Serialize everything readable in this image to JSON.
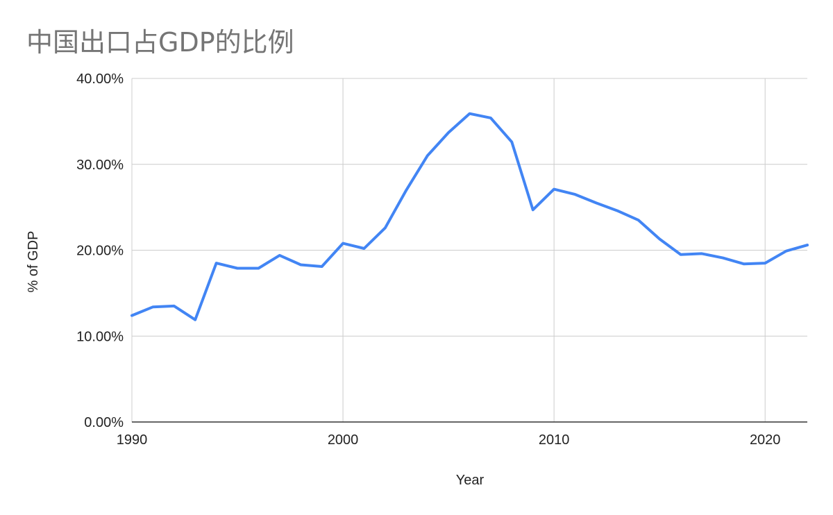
{
  "chart_data": {
    "type": "line",
    "title": "中国出口占GDP的比例",
    "xlabel": "Year",
    "ylabel": "% of GDP",
    "xlim": [
      1990,
      2022
    ],
    "ylim": [
      0,
      40
    ],
    "x_ticks": [
      {
        "value": 1990,
        "label": "1990"
      },
      {
        "value": 2000,
        "label": "2000"
      },
      {
        "value": 2010,
        "label": "2010"
      },
      {
        "value": 2020,
        "label": "2020"
      }
    ],
    "y_ticks": [
      {
        "value": 0,
        "label": "0.00%"
      },
      {
        "value": 10,
        "label": "10.00%"
      },
      {
        "value": 20,
        "label": "20.00%"
      },
      {
        "value": 30,
        "label": "30.00%"
      },
      {
        "value": 40,
        "label": "40.00%"
      }
    ],
    "grid": true,
    "line_color": "#4285f4",
    "series": [
      {
        "x": [
          1990,
          1991,
          1992,
          1993,
          1994,
          1995,
          1996,
          1997,
          1998,
          1999,
          2000,
          2001,
          2002,
          2003,
          2004,
          2005,
          2006,
          2007,
          2008,
          2009,
          2010,
          2011,
          2012,
          2013,
          2014,
          2015,
          2016,
          2017,
          2018,
          2019,
          2020,
          2021,
          2022
        ],
        "values": [
          12.4,
          13.4,
          13.5,
          11.9,
          18.5,
          17.9,
          17.9,
          19.4,
          18.3,
          18.1,
          20.8,
          20.2,
          22.6,
          27.0,
          31.0,
          33.7,
          35.9,
          35.4,
          32.6,
          24.7,
          27.1,
          26.5,
          25.5,
          24.6,
          23.5,
          21.3,
          19.5,
          19.6,
          19.1,
          18.4,
          18.5,
          19.9,
          20.6
        ]
      }
    ]
  }
}
